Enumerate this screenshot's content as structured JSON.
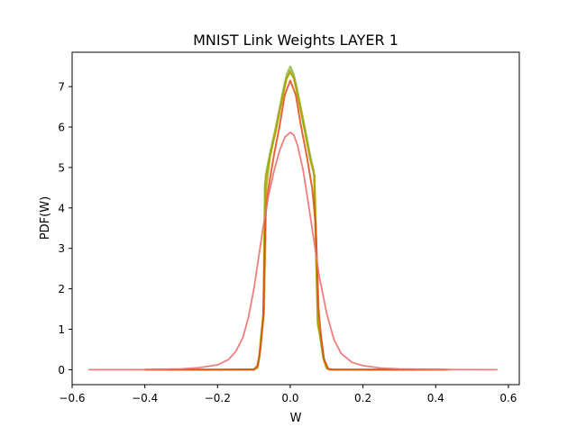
{
  "chart_data": {
    "type": "line",
    "title": "MNIST Link Weights LAYER 1",
    "xlabel": "W",
    "ylabel": "PDF(W)",
    "xlim": [
      -0.6,
      0.63
    ],
    "ylim": [
      -0.37,
      7.85
    ],
    "xticks": [
      -0.6,
      -0.4,
      -0.2,
      0.0,
      0.2,
      0.4,
      0.6
    ],
    "xtick_labels": [
      "−0.6",
      "−0.4",
      "−0.2",
      "0.0",
      "0.2",
      "0.4",
      "0.6"
    ],
    "yticks": [
      0,
      1,
      2,
      3,
      4,
      5,
      6,
      7
    ],
    "ytick_labels": [
      "0",
      "1",
      "2",
      "3",
      "4",
      "5",
      "6",
      "7"
    ],
    "grid": false,
    "legend": false,
    "series": [
      {
        "color": "#7fb33c",
        "opacity": 0.8,
        "width": 2,
        "points": [
          [
            -0.4,
            0
          ],
          [
            -0.2,
            0
          ],
          [
            -0.1,
            0
          ],
          [
            -0.09,
            0.05
          ],
          [
            -0.085,
            0.3
          ],
          [
            -0.08,
            0.8
          ],
          [
            -0.072,
            1.5
          ],
          [
            -0.068,
            4.8
          ],
          [
            -0.055,
            5.4
          ],
          [
            -0.04,
            6.0
          ],
          [
            -0.02,
            6.9
          ],
          [
            -0.01,
            7.3
          ],
          [
            0.0,
            7.5
          ],
          [
            0.01,
            7.3
          ],
          [
            0.02,
            6.9
          ],
          [
            0.04,
            6.0
          ],
          [
            0.055,
            5.3
          ],
          [
            0.065,
            4.9
          ],
          [
            0.075,
            1.2
          ],
          [
            0.082,
            0.8
          ],
          [
            0.09,
            0.3
          ],
          [
            0.1,
            0.03
          ],
          [
            0.11,
            0
          ],
          [
            0.2,
            0
          ],
          [
            0.43,
            0
          ]
        ]
      },
      {
        "color": "#99b000",
        "opacity": 0.8,
        "width": 2,
        "points": [
          [
            -0.38,
            0
          ],
          [
            -0.2,
            0
          ],
          [
            -0.1,
            0
          ],
          [
            -0.092,
            0.05
          ],
          [
            -0.086,
            0.3
          ],
          [
            -0.081,
            0.8
          ],
          [
            -0.074,
            1.4
          ],
          [
            -0.07,
            4.6
          ],
          [
            -0.055,
            5.3
          ],
          [
            -0.04,
            5.9
          ],
          [
            -0.02,
            6.8
          ],
          [
            -0.01,
            7.2
          ],
          [
            0.0,
            7.4
          ],
          [
            0.01,
            7.2
          ],
          [
            0.02,
            6.8
          ],
          [
            0.04,
            5.9
          ],
          [
            0.055,
            5.2
          ],
          [
            0.067,
            4.8
          ],
          [
            0.077,
            1.1
          ],
          [
            0.084,
            0.8
          ],
          [
            0.092,
            0.3
          ],
          [
            0.102,
            0.03
          ],
          [
            0.11,
            0
          ],
          [
            0.2,
            0
          ],
          [
            0.42,
            0
          ]
        ]
      },
      {
        "color": "#b2a000",
        "opacity": 0.8,
        "width": 2,
        "points": [
          [
            -0.4,
            0
          ],
          [
            -0.2,
            0
          ],
          [
            -0.1,
            0
          ],
          [
            -0.09,
            0.05
          ],
          [
            -0.085,
            0.3
          ],
          [
            -0.08,
            0.8
          ],
          [
            -0.072,
            1.4
          ],
          [
            -0.066,
            4.5
          ],
          [
            -0.055,
            5.3
          ],
          [
            -0.04,
            5.9
          ],
          [
            -0.02,
            6.8
          ],
          [
            -0.01,
            7.2
          ],
          [
            0.0,
            7.35
          ],
          [
            0.01,
            7.2
          ],
          [
            0.02,
            6.8
          ],
          [
            0.04,
            5.9
          ],
          [
            0.055,
            5.2
          ],
          [
            0.066,
            4.8
          ],
          [
            0.076,
            1.1
          ],
          [
            0.083,
            0.8
          ],
          [
            0.091,
            0.3
          ],
          [
            0.1,
            0.03
          ],
          [
            0.11,
            0
          ],
          [
            0.2,
            0
          ],
          [
            0.44,
            0
          ]
        ]
      },
      {
        "color": "#e04a1a",
        "opacity": 0.85,
        "width": 2,
        "points": [
          [
            -0.4,
            0
          ],
          [
            -0.2,
            0
          ],
          [
            -0.1,
            0.01
          ],
          [
            -0.09,
            0.1
          ],
          [
            -0.082,
            0.5
          ],
          [
            -0.075,
            1.2
          ],
          [
            -0.068,
            3.8
          ],
          [
            -0.06,
            4.5
          ],
          [
            -0.045,
            5.3
          ],
          [
            -0.03,
            6.0
          ],
          [
            -0.015,
            6.8
          ],
          [
            0.0,
            7.15
          ],
          [
            0.015,
            6.8
          ],
          [
            0.03,
            6.0
          ],
          [
            0.045,
            5.3
          ],
          [
            0.06,
            4.5
          ],
          [
            0.07,
            3.6
          ],
          [
            0.078,
            1.5
          ],
          [
            0.085,
            0.8
          ],
          [
            0.093,
            0.25
          ],
          [
            0.105,
            0.02
          ],
          [
            0.12,
            0
          ],
          [
            0.2,
            0
          ],
          [
            0.43,
            0
          ]
        ]
      },
      {
        "color": "#f07070",
        "opacity": 0.9,
        "width": 1.8,
        "points": [
          [
            -0.555,
            0
          ],
          [
            -0.4,
            0.002
          ],
          [
            -0.35,
            0.01
          ],
          [
            -0.3,
            0.02
          ],
          [
            -0.25,
            0.05
          ],
          [
            -0.2,
            0.12
          ],
          [
            -0.17,
            0.25
          ],
          [
            -0.15,
            0.45
          ],
          [
            -0.13,
            0.8
          ],
          [
            -0.115,
            1.3
          ],
          [
            -0.1,
            2.0
          ],
          [
            -0.09,
            2.6
          ],
          [
            -0.075,
            3.5
          ],
          [
            -0.06,
            4.3
          ],
          [
            -0.045,
            4.9
          ],
          [
            -0.03,
            5.4
          ],
          [
            -0.015,
            5.75
          ],
          [
            0.0,
            5.87
          ],
          [
            0.01,
            5.8
          ],
          [
            0.02,
            5.55
          ],
          [
            0.035,
            4.95
          ],
          [
            0.05,
            4.1
          ],
          [
            0.065,
            3.2
          ],
          [
            0.08,
            2.3
          ],
          [
            0.1,
            1.4
          ],
          [
            0.12,
            0.75
          ],
          [
            0.14,
            0.4
          ],
          [
            0.17,
            0.18
          ],
          [
            0.2,
            0.1
          ],
          [
            0.25,
            0.04
          ],
          [
            0.3,
            0.02
          ],
          [
            0.4,
            0.005
          ],
          [
            0.57,
            0
          ]
        ]
      }
    ]
  }
}
